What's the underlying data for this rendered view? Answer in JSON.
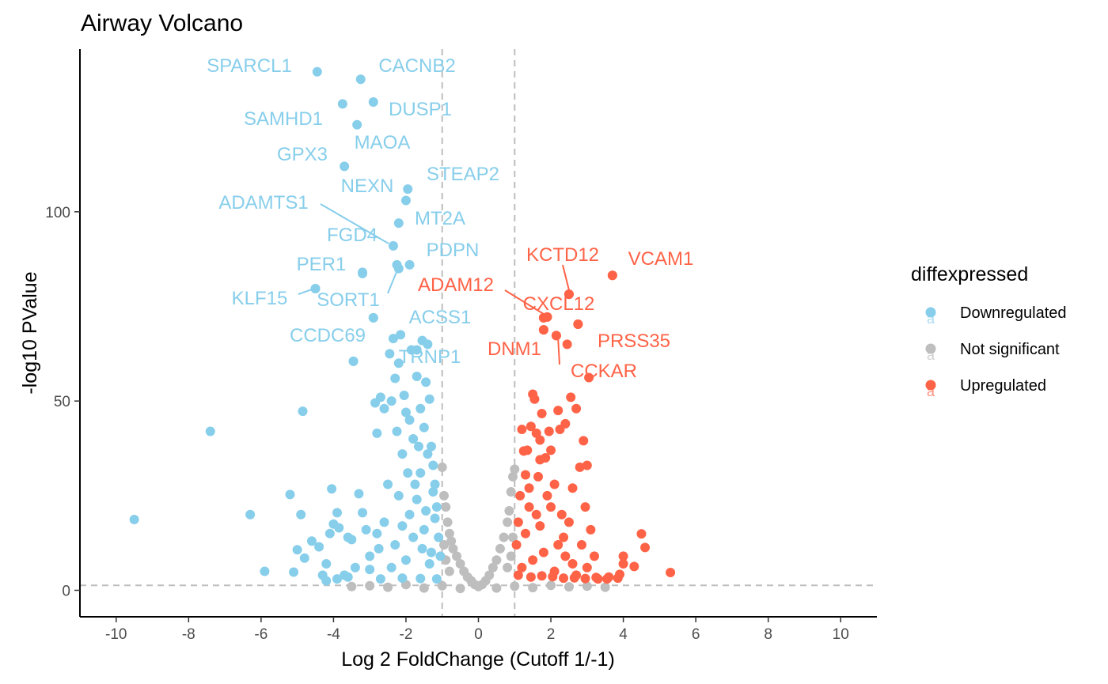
{
  "chart_data": {
    "type": "scatter",
    "title": "Airway Volcano",
    "xlabel": "Log 2 FoldChange (Cutoff 1/-1)",
    "ylabel": "-log10 PValue",
    "xlim": [
      -11,
      11
    ],
    "ylim": [
      -7,
      143
    ],
    "x_ticks": [
      -10,
      -8,
      -6,
      -4,
      -2,
      0,
      2,
      4,
      6,
      8,
      10
    ],
    "y_ticks": [
      0,
      50,
      100
    ],
    "grid": false,
    "reference_lines": {
      "x": [
        -1,
        1
      ],
      "y": 1.3
    },
    "colors": {
      "Downregulated": "#87CEEB",
      "Not significant": "#BEBEBE",
      "Upregulated": "#FF6347"
    },
    "legend": {
      "title": "diffexpressed",
      "position": "right",
      "entries": [
        "Downregulated",
        "Not significant",
        "Upregulated"
      ],
      "key_glyph": "a"
    },
    "series": [
      {
        "name": "Downregulated",
        "points": [
          [
            -9.5,
            18.7
          ],
          [
            -7.4,
            42
          ],
          [
            -6.3,
            20
          ],
          [
            -5.9,
            5
          ],
          [
            -5.2,
            25.3
          ],
          [
            -5.1,
            4.8
          ],
          [
            -5.0,
            10.7
          ],
          [
            -4.9,
            20
          ],
          [
            -4.85,
            47.3
          ],
          [
            -4.8,
            8.5
          ],
          [
            -4.6,
            13
          ],
          [
            -4.5,
            79.7
          ],
          [
            -4.4,
            11.5
          ],
          [
            -4.3,
            4
          ],
          [
            -4.2,
            7
          ],
          [
            -4.1,
            15
          ],
          [
            -4.05,
            26.8
          ],
          [
            -4.0,
            17.5
          ],
          [
            -3.9,
            20.5
          ],
          [
            -3.85,
            16.5
          ],
          [
            -3.7,
            4
          ],
          [
            -3.6,
            14
          ],
          [
            -3.5,
            13.4
          ],
          [
            -3.45,
            60.5
          ],
          [
            -3.4,
            6
          ],
          [
            -3.3,
            25.5
          ],
          [
            -3.2,
            20.5
          ],
          [
            -3.2,
            83.7
          ],
          [
            -3.1,
            16
          ],
          [
            -3.0,
            5.5
          ],
          [
            -2.9,
            72
          ],
          [
            -2.85,
            49.5
          ],
          [
            -2.8,
            41.5
          ],
          [
            -2.75,
            11
          ],
          [
            -2.7,
            51
          ],
          [
            -2.6,
            48
          ],
          [
            -2.5,
            28
          ],
          [
            -2.45,
            62.5
          ],
          [
            -2.4,
            50
          ],
          [
            -2.35,
            66.5
          ],
          [
            -2.3,
            56
          ],
          [
            -2.25,
            42
          ],
          [
            -2.2,
            60
          ],
          [
            -2.15,
            67.5
          ],
          [
            -2.1,
            36
          ],
          [
            -2.05,
            51.5
          ],
          [
            -2.0,
            47
          ],
          [
            -1.95,
            31
          ],
          [
            -1.9,
            45
          ],
          [
            -1.85,
            63.5
          ],
          [
            -1.8,
            40
          ],
          [
            -1.75,
            28
          ],
          [
            -1.7,
            56.5
          ],
          [
            -1.65,
            38
          ],
          [
            -1.6,
            48
          ],
          [
            -1.55,
            66
          ],
          [
            -1.5,
            43
          ],
          [
            -1.45,
            55
          ],
          [
            -1.4,
            65
          ],
          [
            -1.35,
            50.5
          ],
          [
            -1.3,
            38
          ],
          [
            -1.25,
            33
          ],
          [
            -1.2,
            28
          ],
          [
            -1.15,
            22
          ],
          [
            -1.1,
            14
          ],
          [
            -1.05,
            9
          ],
          [
            -2.6,
            18
          ],
          [
            -2.3,
            12
          ],
          [
            -2.0,
            8
          ],
          [
            -1.7,
            24
          ],
          [
            -1.5,
            16
          ],
          [
            -1.3,
            10
          ],
          [
            -1.9,
            20
          ],
          [
            -2.2,
            25
          ],
          [
            -1.6,
            31
          ],
          [
            -1.4,
            36
          ],
          [
            -2.8,
            15
          ],
          [
            -3.0,
            9
          ],
          [
            -2.4,
            6
          ],
          [
            -1.8,
            14
          ],
          [
            -1.2,
            19
          ],
          [
            -2.1,
            17
          ],
          [
            -1.55,
            11
          ],
          [
            -1.35,
            7
          ],
          [
            -1.25,
            26
          ],
          [
            -1.45,
            21
          ],
          [
            -1.15,
            3
          ],
          [
            -3.6,
            3.5
          ],
          [
            -3.9,
            3
          ],
          [
            -4.2,
            2.5
          ],
          [
            -2.7,
            3
          ],
          [
            -2.1,
            3.2
          ],
          [
            -1.6,
            3.1
          ]
        ]
      },
      {
        "name": "Not significant",
        "points": [
          [
            -1.0,
            32.5
          ],
          [
            -0.95,
            25
          ],
          [
            -0.9,
            22
          ],
          [
            -0.85,
            18
          ],
          [
            -0.8,
            15
          ],
          [
            -0.75,
            13
          ],
          [
            -0.7,
            11
          ],
          [
            -0.6,
            9
          ],
          [
            -0.5,
            7
          ],
          [
            -0.4,
            5
          ],
          [
            -0.3,
            3.5
          ],
          [
            -0.2,
            2.5
          ],
          [
            -0.1,
            1.5
          ],
          [
            0,
            1
          ],
          [
            0.1,
            1.5
          ],
          [
            0.2,
            2.5
          ],
          [
            0.3,
            4
          ],
          [
            0.4,
            6
          ],
          [
            0.5,
            8
          ],
          [
            0.6,
            11
          ],
          [
            0.7,
            14
          ],
          [
            0.8,
            18
          ],
          [
            0.85,
            21
          ],
          [
            0.9,
            26
          ],
          [
            0.95,
            30
          ],
          [
            1.0,
            32
          ],
          [
            -3.5,
            1
          ],
          [
            -3,
            1.2
          ],
          [
            -2.5,
            0.8
          ],
          [
            -2,
            1.5
          ],
          [
            -1.5,
            0.6
          ],
          [
            -1,
            1.2
          ],
          [
            -0.5,
            0.5
          ],
          [
            0.5,
            0.6
          ],
          [
            1,
            1.1
          ],
          [
            1.5,
            0.7
          ],
          [
            2,
            1.3
          ],
          [
            2.5,
            0.9
          ],
          [
            3,
            1.1
          ],
          [
            3.5,
            0.8
          ],
          [
            -0.9,
            8
          ],
          [
            -0.8,
            5
          ],
          [
            0.8,
            6
          ],
          [
            0.9,
            9
          ],
          [
            -0.95,
            12
          ],
          [
            0.95,
            14
          ]
        ]
      },
      {
        "name": "Upregulated",
        "points": [
          [
            5.3,
            4.7
          ],
          [
            4.6,
            11.3
          ],
          [
            4.5,
            14.9
          ],
          [
            4.3,
            6.3
          ],
          [
            4.0,
            9
          ],
          [
            4.0,
            7
          ],
          [
            3.9,
            4.2
          ],
          [
            3.7,
            83.2
          ],
          [
            3.6,
            3.5
          ],
          [
            3.3,
            3
          ],
          [
            3.2,
            9
          ],
          [
            3.1,
            16
          ],
          [
            3.05,
            56.2
          ],
          [
            3.0,
            33
          ],
          [
            2.95,
            22
          ],
          [
            2.9,
            39.5
          ],
          [
            2.85,
            12
          ],
          [
            2.8,
            32.5
          ],
          [
            2.75,
            70.3
          ],
          [
            2.7,
            48
          ],
          [
            2.6,
            7
          ],
          [
            2.55,
            51
          ],
          [
            2.5,
            78.2
          ],
          [
            2.45,
            65
          ],
          [
            2.4,
            44
          ],
          [
            2.35,
            14
          ],
          [
            2.3,
            20
          ],
          [
            2.25,
            42.5
          ],
          [
            2.2,
            47.5
          ],
          [
            2.15,
            67.3
          ],
          [
            2.1,
            28
          ],
          [
            2.0,
            37
          ],
          [
            1.95,
            42
          ],
          [
            1.9,
            72.2
          ],
          [
            1.85,
            35
          ],
          [
            1.8,
            72
          ],
          [
            1.8,
            68.8
          ],
          [
            1.75,
            46.7
          ],
          [
            1.7,
            34.5
          ],
          [
            1.7,
            39.7
          ],
          [
            1.65,
            30
          ],
          [
            1.6,
            41.5
          ],
          [
            1.55,
            50.5
          ],
          [
            1.5,
            51.8
          ],
          [
            1.45,
            43.3
          ],
          [
            1.4,
            22
          ],
          [
            1.35,
            37
          ],
          [
            1.3,
            30.5
          ],
          [
            1.25,
            36.8
          ],
          [
            1.2,
            42.5
          ],
          [
            1.15,
            25
          ],
          [
            1.1,
            18
          ],
          [
            1.05,
            12
          ],
          [
            1.5,
            8
          ],
          [
            1.8,
            10
          ],
          [
            2.1,
            5
          ],
          [
            2.4,
            9
          ],
          [
            2.7,
            4
          ],
          [
            3.0,
            6
          ],
          [
            1.3,
            15
          ],
          [
            1.6,
            20
          ],
          [
            1.9,
            25
          ],
          [
            2.2,
            12
          ],
          [
            1.4,
            27
          ],
          [
            1.7,
            17
          ],
          [
            2.0,
            22
          ],
          [
            2.5,
            18
          ],
          [
            2.6,
            27
          ],
          [
            1.2,
            6
          ],
          [
            1.1,
            4
          ],
          [
            1.45,
            3.5
          ],
          [
            1.75,
            3.8
          ],
          [
            2.05,
            3.6
          ],
          [
            2.35,
            3.2
          ],
          [
            2.65,
            3.3
          ],
          [
            2.95,
            3.1
          ],
          [
            3.25,
            3.4
          ],
          [
            3.55,
            3.0
          ],
          [
            3.85,
            3.2
          ]
        ]
      }
    ],
    "labeled_genes": [
      {
        "gene": "SPARCL1",
        "x": -4.45,
        "y": 137,
        "group": "Downregulated"
      },
      {
        "gene": "CACNB2",
        "x": -3.25,
        "y": 135,
        "group": "Downregulated"
      },
      {
        "gene": "DUSP1",
        "x": -2.9,
        "y": 129,
        "group": "Downregulated"
      },
      {
        "gene": "SAMHD1",
        "x": -3.75,
        "y": 128.5,
        "group": "Downregulated"
      },
      {
        "gene": "MAOA",
        "x": -3.35,
        "y": 123,
        "group": "Downregulated"
      },
      {
        "gene": "GPX3",
        "x": -3.7,
        "y": 112,
        "group": "Downregulated"
      },
      {
        "gene": "STEAP2",
        "x": -1.95,
        "y": 106,
        "group": "Downregulated"
      },
      {
        "gene": "NEXN",
        "x": -2.0,
        "y": 103,
        "group": "Downregulated"
      },
      {
        "gene": "MT2A",
        "x": -2.2,
        "y": 97,
        "group": "Downregulated"
      },
      {
        "gene": "ADAMTS1",
        "x": -2.35,
        "y": 91,
        "group": "Downregulated"
      },
      {
        "gene": "FGD4",
        "x": -2.25,
        "y": 86,
        "group": "Downregulated"
      },
      {
        "gene": "PDPN",
        "x": -1.9,
        "y": 86,
        "group": "Downregulated"
      },
      {
        "gene": "PER1",
        "x": -3.2,
        "y": 84,
        "group": "Downregulated"
      },
      {
        "gene": "SORT1",
        "x": -2.2,
        "y": 85,
        "group": "Downregulated"
      },
      {
        "gene": "KLF15",
        "x": -4.5,
        "y": 79.7,
        "group": "Downregulated"
      },
      {
        "gene": "ACSS1",
        "x": -2.9,
        "y": 72,
        "group": "Downregulated"
      },
      {
        "gene": "CCDC69",
        "x": -3.45,
        "y": 60.5,
        "group": "Downregulated"
      },
      {
        "gene": "TRNP1",
        "x": -1.7,
        "y": 63.5,
        "group": "Downregulated"
      },
      {
        "gene": "KCTD12",
        "x": 2.5,
        "y": 78.2,
        "group": "Upregulated"
      },
      {
        "gene": "VCAM1",
        "x": 3.7,
        "y": 83.2,
        "group": "Upregulated"
      },
      {
        "gene": "ADAM12",
        "x": 1.8,
        "y": 72,
        "group": "Upregulated"
      },
      {
        "gene": "CXCL12",
        "x": 1.9,
        "y": 72.2,
        "group": "Upregulated"
      },
      {
        "gene": "DNM1",
        "x": 1.8,
        "y": 68.8,
        "group": "Upregulated"
      },
      {
        "gene": "PRSS35",
        "x": 2.75,
        "y": 70.3,
        "group": "Upregulated"
      },
      {
        "gene": "CCKAR",
        "x": 2.15,
        "y": 67.3,
        "group": "Upregulated"
      }
    ]
  }
}
